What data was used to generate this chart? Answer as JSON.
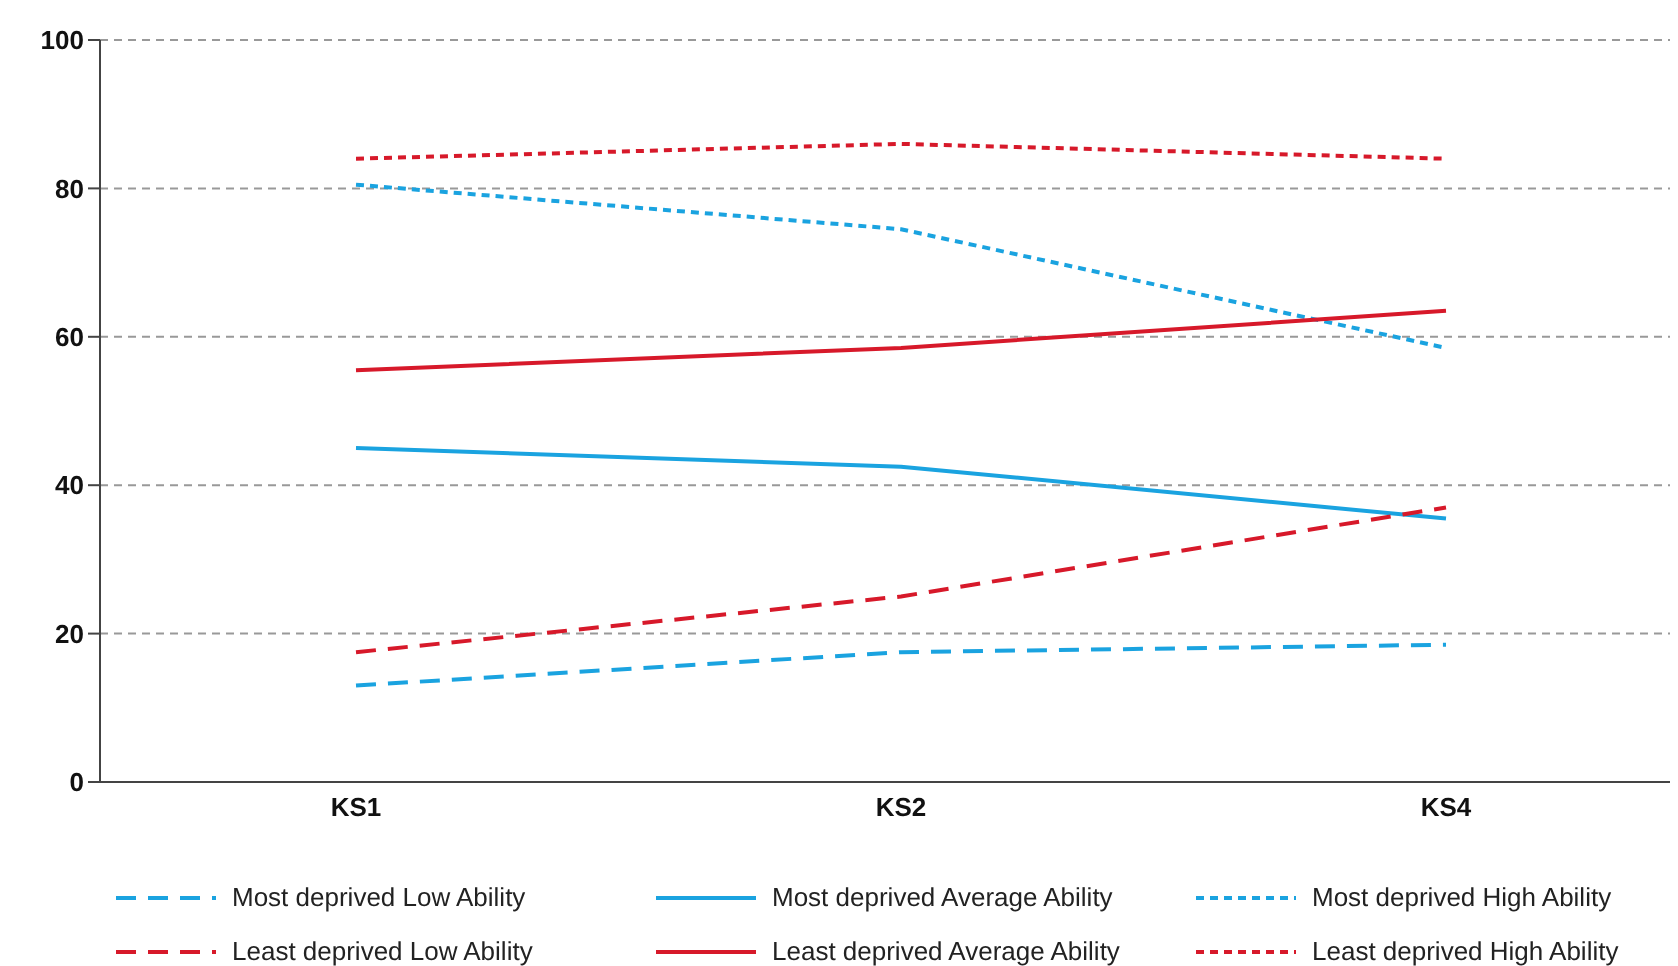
{
  "chart_data": {
    "type": "line",
    "categories": [
      "KS1",
      "KS2",
      "KS4"
    ],
    "ylim": [
      0,
      100
    ],
    "yticks": [
      0,
      20,
      40,
      60,
      80,
      100
    ],
    "grid": "y",
    "legend": "bottom",
    "marker": "none",
    "series": [
      {
        "name": "Most deprived Low Ability",
        "color": "#1aa3e0",
        "line_style": "dashed",
        "values": [
          13,
          17.5,
          18.5
        ]
      },
      {
        "name": "Most deprived Average Ability",
        "color": "#1aa3e0",
        "line_style": "solid",
        "values": [
          45,
          42.5,
          35.5
        ]
      },
      {
        "name": "Most deprived High Ability",
        "color": "#1aa3e0",
        "line_style": "dotted",
        "values": [
          80.5,
          74.5,
          58.5
        ]
      },
      {
        "name": "Least deprived Low Ability",
        "color": "#d7192a",
        "line_style": "dashed",
        "values": [
          17.5,
          25,
          37
        ]
      },
      {
        "name": "Least deprived Average Ability",
        "color": "#d7192a",
        "line_style": "solid",
        "values": [
          55.5,
          58.5,
          63.5
        ]
      },
      {
        "name": "Least deprived High Ability",
        "color": "#d7192a",
        "line_style": "dotted",
        "values": [
          84,
          86,
          84
        ]
      }
    ]
  }
}
